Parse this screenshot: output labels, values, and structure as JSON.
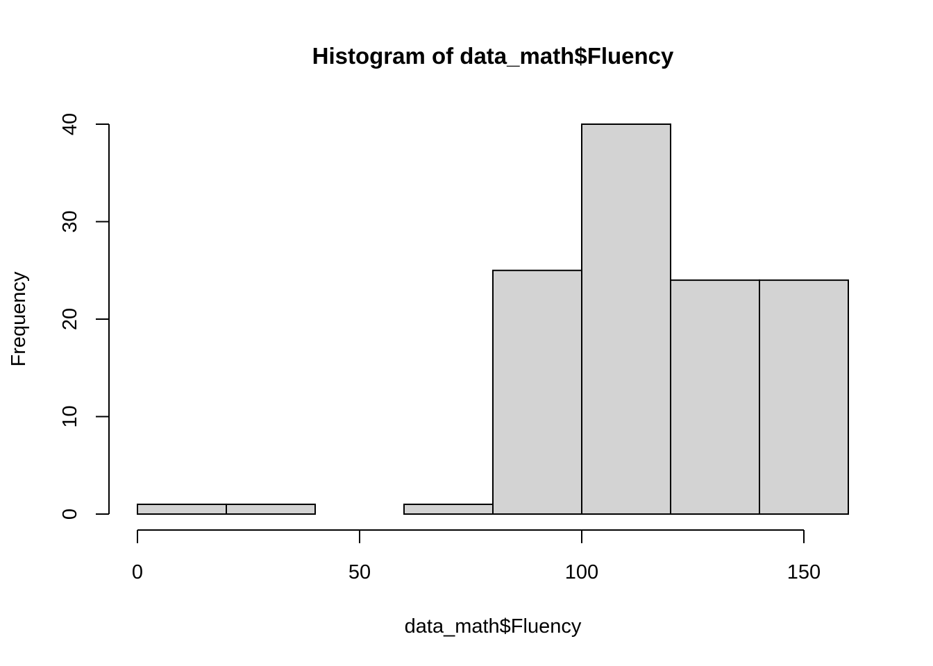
{
  "chart_data": {
    "type": "bar",
    "title": "Histogram of data_math$Fluency",
    "xlabel": "data_math$Fluency",
    "ylabel": "Frequency",
    "bin_breaks": [
      0,
      20,
      40,
      60,
      80,
      100,
      120,
      140,
      160
    ],
    "counts": [
      1,
      1,
      0,
      1,
      25,
      40,
      24,
      24
    ],
    "xticks": [
      0,
      50,
      100,
      150
    ],
    "yticks": [
      0,
      10,
      20,
      30,
      40
    ],
    "xtick_labels": [
      "0",
      "50",
      "100",
      "150"
    ],
    "ytick_labels": [
      "0",
      "10",
      "20",
      "30",
      "40"
    ],
    "xlim": [
      0,
      160
    ],
    "ylim": [
      0,
      40
    ],
    "bar_fill": "#d3d3d3",
    "bar_stroke": "#000000",
    "grid": false
  }
}
